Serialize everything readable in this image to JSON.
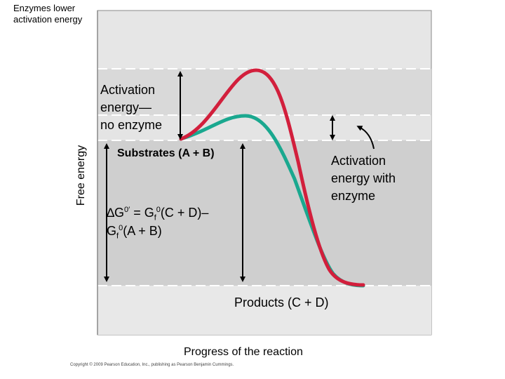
{
  "title": {
    "line1": "Enzymes lower",
    "line2": "activation energy"
  },
  "axes": {
    "ylabel": "Free energy",
    "xlabel": "Progress of the reaction"
  },
  "labels": {
    "ea_no_enzyme": [
      "Activation",
      "energy—",
      "no enzyme"
    ],
    "ea_enzyme": [
      "Activation",
      "energy with",
      "enzyme"
    ],
    "substrates": "Substrates (A + B)",
    "products": "Products (C + D)",
    "delta_g": {
      "line1": {
        "a": "∆G",
        "b": "0′",
        "c": " = G",
        "d": "f",
        "e": "0",
        "f": "(C + D)–"
      },
      "line2": {
        "a": "G",
        "b": "f",
        "c": "0",
        "d": "(A + B)"
      }
    },
    "copyright": "Copyright © 2009 Pearson Education, Inc., publishing as Pearson Benjamin Cummings."
  },
  "curves": [
    {
      "name": "no enzyme",
      "color": "#d21f3c"
    },
    {
      "name": "with enzyme",
      "color": "#1aa88f"
    }
  ],
  "colors": {
    "band": "#dcdcdc",
    "band_dark": "#cfcfcf",
    "frame": "#777777"
  }
}
